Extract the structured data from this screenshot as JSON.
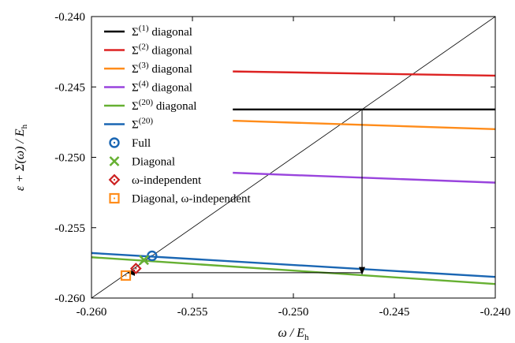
{
  "chart_data": {
    "type": "line",
    "xlabel": "ω / E_h",
    "ylabel": "ε + Σ(ω) / E_h",
    "xlim": [
      -0.26,
      -0.24
    ],
    "ylim": [
      -0.26,
      -0.24
    ],
    "x_ticks": [
      "-0.260",
      "-0.255",
      "-0.250",
      "-0.245",
      "-0.240"
    ],
    "y_ticks": [
      "-0.260",
      "-0.255",
      "-0.250",
      "-0.245",
      "-0.240"
    ],
    "grid": false,
    "legend_position": "top-left",
    "series": [
      {
        "name": "Σ(1) diagonal",
        "color": "#000000",
        "x": [
          -0.253,
          -0.24
        ],
        "y": [
          -0.2466,
          -0.2466
        ]
      },
      {
        "name": "Σ(2) diagonal",
        "color": "#dd2222",
        "x": [
          -0.253,
          -0.24
        ],
        "y": [
          -0.2439,
          -0.2442
        ]
      },
      {
        "name": "Σ(3) diagonal",
        "color": "#ff8c1a",
        "x": [
          -0.253,
          -0.24
        ],
        "y": [
          -0.2474,
          -0.248
        ]
      },
      {
        "name": "Σ(4) diagonal",
        "color": "#9944dd",
        "x": [
          -0.253,
          -0.24
        ],
        "y": [
          -0.2511,
          -0.2518
        ]
      },
      {
        "name": "Σ(20) diagonal",
        "color": "#66b032",
        "x": [
          -0.26,
          -0.24
        ],
        "y": [
          -0.2571,
          -0.259
        ]
      },
      {
        "name": "Σ(20)",
        "color": "#1a66b3",
        "x": [
          -0.26,
          -0.24
        ],
        "y": [
          -0.2568,
          -0.2585
        ]
      }
    ],
    "reference_line": {
      "x": [
        -0.26,
        -0.24
      ],
      "y": [
        -0.26,
        -0.24
      ],
      "color": "#000000"
    },
    "markers": [
      {
        "name": "Full",
        "symbol": "circle",
        "color": "#1a66b3",
        "x": -0.257,
        "y": -0.257
      },
      {
        "name": "Diagonal",
        "symbol": "cross",
        "color": "#66b032",
        "x": -0.2574,
        "y": -0.2573
      },
      {
        "name": "ω-independent",
        "symbol": "diamond",
        "color": "#cc2222",
        "x": -0.2578,
        "y": -0.2579
      },
      {
        "name": "Diagonal, ω-independent",
        "symbol": "square",
        "color": "#ff8c1a",
        "x": -0.2583,
        "y": -0.2584
      }
    ],
    "arrows": [
      {
        "from": [
          -0.2466,
          -0.2466
        ],
        "to": [
          -0.2466,
          -0.2583
        ]
      },
      {
        "from": [
          -0.2466,
          -0.2582
        ],
        "to": [
          -0.2582,
          -0.2582
        ]
      }
    ],
    "legend": [
      {
        "label": "Σ",
        "sup": "(1)",
        "suffix": " diagonal",
        "kind": "line",
        "color": "#000000"
      },
      {
        "label": "Σ",
        "sup": "(2)",
        "suffix": " diagonal",
        "kind": "line",
        "color": "#dd2222"
      },
      {
        "label": "Σ",
        "sup": "(3)",
        "suffix": " diagonal",
        "kind": "line",
        "color": "#ff8c1a"
      },
      {
        "label": "Σ",
        "sup": "(4)",
        "suffix": " diagonal",
        "kind": "line",
        "color": "#9944dd"
      },
      {
        "label": "Σ",
        "sup": "(20)",
        "suffix": " diagonal",
        "kind": "line",
        "color": "#66b032"
      },
      {
        "label": "Σ",
        "sup": "(20)",
        "suffix": "",
        "kind": "line",
        "color": "#1a66b3"
      },
      {
        "label": "Full",
        "sup": "",
        "suffix": "",
        "kind": "circle",
        "color": "#1a66b3"
      },
      {
        "label": "Diagonal",
        "sup": "",
        "suffix": "",
        "kind": "cross",
        "color": "#66b032"
      },
      {
        "label": "ω-independent",
        "sup": "",
        "suffix": "",
        "kind": "diamond",
        "color": "#cc2222"
      },
      {
        "label": "Diagonal, ω-independent",
        "sup": "",
        "suffix": "",
        "kind": "square",
        "color": "#ff8c1a"
      }
    ]
  }
}
